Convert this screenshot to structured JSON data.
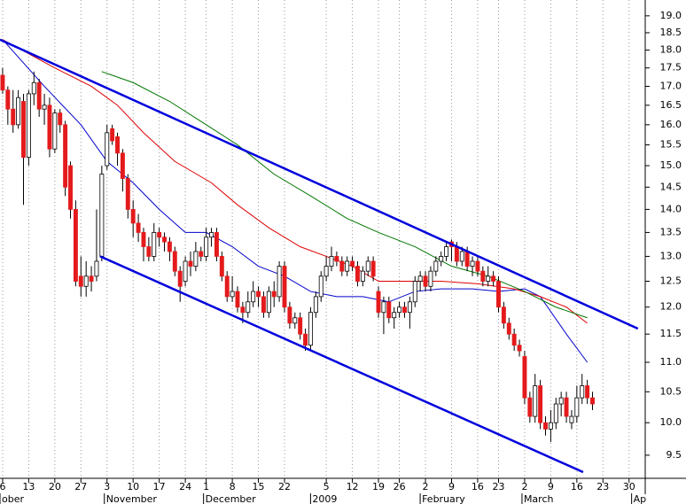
{
  "chart_data": {
    "type": "candlestick",
    "ylog": true,
    "ylim": [
      9.16,
      19.48
    ],
    "yticks": [
      9.5,
      {
        "value": 10,
        "label": "10.0"
      },
      10.5,
      {
        "value": 11,
        "label": "11.0"
      },
      11.5,
      {
        "value": 12,
        "label": "12.0"
      },
      12.5,
      {
        "value": 13,
        "label": "13.0"
      },
      13.5,
      {
        "value": 14,
        "label": "14.0"
      },
      14.5,
      {
        "value": 15,
        "label": "15.0"
      },
      15.5,
      {
        "value": 16,
        "label": "16.0"
      },
      16.5,
      {
        "value": 17,
        "label": "17.0"
      },
      17.5,
      {
        "value": 18,
        "label": "18.0"
      },
      18.5,
      {
        "value": 19,
        "label": "19.0"
      }
    ],
    "xlim": [
      -0.5,
      123.1
    ],
    "xticks": [
      {
        "value": 0,
        "label": "6"
      },
      {
        "value": 5,
        "label": "13"
      },
      {
        "value": 10,
        "label": "20"
      },
      {
        "value": 15,
        "label": "27"
      },
      {
        "value": 20,
        "label": "3"
      },
      {
        "value": 25,
        "label": "10"
      },
      {
        "value": 30,
        "label": "17"
      },
      {
        "value": 35,
        "label": "24"
      },
      {
        "value": 39,
        "label": "1"
      },
      {
        "value": 44,
        "label": "8"
      },
      {
        "value": 49,
        "label": "15"
      },
      {
        "value": 54,
        "label": "22"
      },
      {
        "value": 62,
        "label": "5"
      },
      {
        "value": 67,
        "label": "12"
      },
      {
        "value": 72,
        "label": "19"
      },
      {
        "value": 76,
        "label": "26"
      },
      {
        "value": 81,
        "label": "2"
      },
      {
        "value": 86,
        "label": "9"
      },
      {
        "value": 91,
        "label": "16"
      },
      {
        "value": 95,
        "label": "23"
      },
      {
        "value": 100,
        "label": "2"
      },
      {
        "value": 105,
        "label": "9"
      },
      {
        "value": 110,
        "label": "16"
      },
      {
        "value": 115,
        "label": "23"
      },
      {
        "value": 120,
        "label": "30"
      }
    ],
    "month_labels": [
      {
        "value": -0.5,
        "label": "ober"
      },
      {
        "value": 20,
        "label": "November"
      },
      {
        "value": 39,
        "label": "December"
      },
      {
        "value": 59.5,
        "label": "2009"
      },
      {
        "value": 80.5,
        "label": "February"
      },
      {
        "value": 100,
        "label": "March"
      },
      {
        "value": 121,
        "label": "Ap"
      }
    ],
    "grid": true,
    "up_color": "#ffffff",
    "down_color": "#e41a1c",
    "open": [
      17.3,
      16.9,
      16.4,
      16.0,
      16.6,
      15.2,
      16.8,
      17.1,
      16.4,
      16.5,
      15.4,
      16.3,
      16.0,
      15.0,
      14.0,
      12.6,
      12.4,
      12.6,
      12.6,
      13.0,
      15.0,
      15.9,
      15.7,
      15.3,
      14.7,
      14.0,
      13.7,
      13.5,
      13.2,
      13.0,
      13.5,
      13.4,
      13.3,
      13.1,
      12.7,
      12.5,
      12.9,
      12.8,
      13.1,
      13.0,
      13.4,
      13.5,
      13.0,
      12.6,
      12.2,
      12.3,
      12.0,
      11.9,
      12.1,
      12.3,
      12.2,
      11.9,
      12.3,
      12.2,
      12.8,
      12.0,
      11.7,
      11.8,
      11.5,
      11.3,
      11.9,
      12.2,
      12.6,
      12.8,
      13.0,
      12.9,
      12.7,
      12.9,
      12.8,
      12.5,
      12.7,
      12.9,
      12.3,
      11.9,
      12.1,
      11.8,
      11.9,
      12.0,
      11.9,
      12.1,
      12.5,
      12.6,
      12.4,
      12.7,
      12.9,
      13.0,
      13.3,
      13.2,
      12.9,
      13.1,
      12.8,
      12.9,
      12.7,
      12.5,
      12.6,
      12.5,
      12.0,
      11.7,
      11.5,
      11.3,
      11.1,
      10.4,
      10.1,
      10.6,
      10.0,
      9.9,
      10.0,
      10.3,
      10.4,
      10.0,
      10.1,
      10.4,
      10.6,
      10.4
    ],
    "high": [
      17.5,
      17.0,
      16.9,
      16.9,
      16.8,
      16.9,
      17.4,
      17.2,
      16.8,
      16.7,
      16.4,
      16.4,
      16.1,
      15.1,
      14.2,
      13.0,
      12.9,
      12.8,
      14.0,
      15.0,
      16.0,
      16.0,
      15.8,
      15.4,
      14.8,
      14.2,
      13.9,
      13.6,
      13.4,
      13.7,
      13.6,
      13.5,
      13.4,
      13.2,
      12.8,
      13.0,
      13.1,
      13.3,
      13.2,
      13.6,
      13.6,
      13.6,
      13.1,
      12.7,
      12.6,
      12.4,
      12.1,
      12.3,
      12.5,
      12.4,
      12.3,
      12.4,
      12.5,
      12.9,
      12.9,
      12.1,
      11.9,
      11.9,
      11.6,
      12.0,
      12.3,
      12.7,
      13.0,
      13.2,
      13.1,
      13.0,
      13.0,
      13.0,
      12.9,
      12.8,
      13.0,
      13.0,
      12.4,
      12.2,
      12.2,
      12.0,
      12.1,
      12.1,
      12.2,
      12.6,
      12.7,
      12.7,
      12.8,
      13.0,
      13.1,
      13.3,
      13.35,
      13.3,
      13.2,
      13.2,
      13.0,
      13.0,
      12.8,
      12.8,
      12.7,
      12.6,
      12.1,
      11.8,
      11.6,
      11.4,
      11.2,
      10.5,
      10.8,
      10.7,
      10.1,
      10.2,
      10.4,
      10.5,
      10.5,
      10.2,
      10.6,
      10.8,
      10.7,
      10.5
    ],
    "low": [
      16.8,
      16.0,
      15.8,
      15.9,
      14.1,
      15.0,
      16.5,
      16.2,
      16.0,
      15.2,
      15.3,
      15.8,
      14.3,
      13.8,
      12.4,
      12.2,
      12.2,
      12.3,
      12.5,
      12.9,
      14.9,
      15.5,
      15.0,
      14.4,
      13.8,
      13.4,
      13.3,
      12.9,
      12.9,
      12.9,
      13.2,
      13.1,
      12.9,
      12.6,
      12.1,
      12.4,
      12.6,
      12.7,
      12.9,
      12.9,
      13.2,
      12.9,
      12.5,
      12.1,
      12.1,
      11.9,
      11.7,
      11.8,
      12.0,
      12.0,
      11.8,
      11.8,
      12.0,
      12.1,
      11.9,
      11.6,
      11.6,
      11.4,
      11.2,
      11.2,
      11.8,
      12.1,
      12.5,
      12.7,
      12.8,
      12.6,
      12.6,
      12.7,
      12.4,
      12.4,
      12.6,
      12.5,
      11.8,
      11.5,
      11.7,
      11.6,
      11.8,
      11.8,
      11.6,
      12.0,
      12.3,
      12.3,
      12.3,
      12.6,
      12.8,
      12.9,
      12.9,
      12.8,
      12.8,
      12.7,
      12.6,
      12.6,
      12.4,
      12.4,
      12.4,
      11.9,
      11.6,
      11.4,
      11.2,
      11.1,
      10.3,
      10.0,
      10.0,
      9.9,
      9.8,
      9.7,
      9.9,
      10.1,
      10.0,
      9.9,
      10.0,
      10.3,
      10.3,
      10.2
    ],
    "close": [
      16.9,
      16.4,
      16.0,
      16.7,
      15.2,
      16.8,
      17.1,
      16.4,
      16.5,
      15.4,
      16.3,
      16.0,
      14.5,
      14.0,
      12.5,
      12.4,
      12.6,
      12.5,
      12.9,
      14.8,
      15.8,
      15.6,
      15.3,
      14.7,
      14.0,
      13.7,
      13.5,
      13.2,
      13.0,
      13.5,
      13.4,
      13.3,
      13.1,
      12.7,
      12.4,
      12.9,
      12.8,
      13.1,
      13.0,
      13.4,
      13.5,
      13.0,
      12.6,
      12.2,
      12.3,
      12.0,
      11.9,
      12.1,
      12.3,
      12.2,
      11.9,
      12.3,
      12.2,
      12.8,
      12.0,
      11.7,
      11.8,
      11.5,
      11.3,
      11.9,
      12.2,
      12.6,
      12.8,
      13.0,
      12.9,
      12.7,
      12.9,
      12.8,
      12.5,
      12.7,
      12.9,
      12.6,
      11.9,
      12.1,
      11.8,
      11.9,
      12.0,
      11.9,
      12.1,
      12.5,
      12.6,
      12.4,
      12.7,
      12.9,
      13.0,
      13.2,
      13.2,
      12.9,
      13.1,
      12.8,
      12.9,
      12.7,
      12.5,
      12.6,
      12.5,
      12.0,
      11.7,
      11.5,
      11.3,
      11.2,
      10.4,
      10.1,
      10.6,
      10.0,
      9.9,
      10.0,
      10.3,
      10.4,
      10.1,
      10.1,
      10.4,
      10.6,
      10.4,
      10.3
    ],
    "lines": [
      {
        "color": "#0000cc",
        "x": [
          0,
          8,
          15,
          20,
          25,
          30,
          35,
          39,
          44,
          49,
          54,
          59,
          64,
          69,
          74,
          79,
          84,
          90,
          95,
          100,
          103,
          108,
          112
        ],
        "values": [
          18.3,
          17.0,
          16.0,
          15.1,
          14.6,
          14.0,
          13.5,
          13.5,
          13.2,
          12.8,
          12.6,
          12.3,
          12.2,
          12.2,
          12.1,
          12.3,
          12.35,
          12.35,
          12.3,
          12.35,
          12.2,
          11.5,
          11.0
        ]
      },
      {
        "color": "#dd0000",
        "x": [
          0,
          10,
          17,
          22,
          27,
          33,
          40,
          45,
          51,
          57,
          62,
          67,
          72,
          78,
          84,
          91,
          98,
          103,
          108,
          112
        ],
        "values": [
          18.3,
          17.5,
          17.0,
          16.5,
          15.8,
          15.1,
          14.6,
          14.1,
          13.6,
          13.2,
          13.0,
          12.8,
          12.5,
          12.5,
          12.5,
          12.45,
          12.35,
          12.2,
          12.0,
          11.7
        ]
      },
      {
        "color": "#007700",
        "x": [
          19,
          25,
          32,
          39,
          45,
          52,
          59,
          66,
          72,
          79,
          86,
          93,
          100,
          106,
          112
        ],
        "values": [
          17.4,
          17.1,
          16.6,
          16.0,
          15.5,
          14.8,
          14.3,
          13.8,
          13.5,
          13.2,
          12.8,
          12.6,
          12.3,
          12.0,
          11.8
        ]
      }
    ],
    "trend_lines": [
      {
        "color": "#0000dd",
        "x": [
          -0.5,
          121.7
        ],
        "values": [
          18.3,
          11.6
        ]
      },
      {
        "color": "#0000dd",
        "x": [
          18.7,
          111.2
        ],
        "values": [
          13.0,
          9.25
        ]
      }
    ]
  }
}
